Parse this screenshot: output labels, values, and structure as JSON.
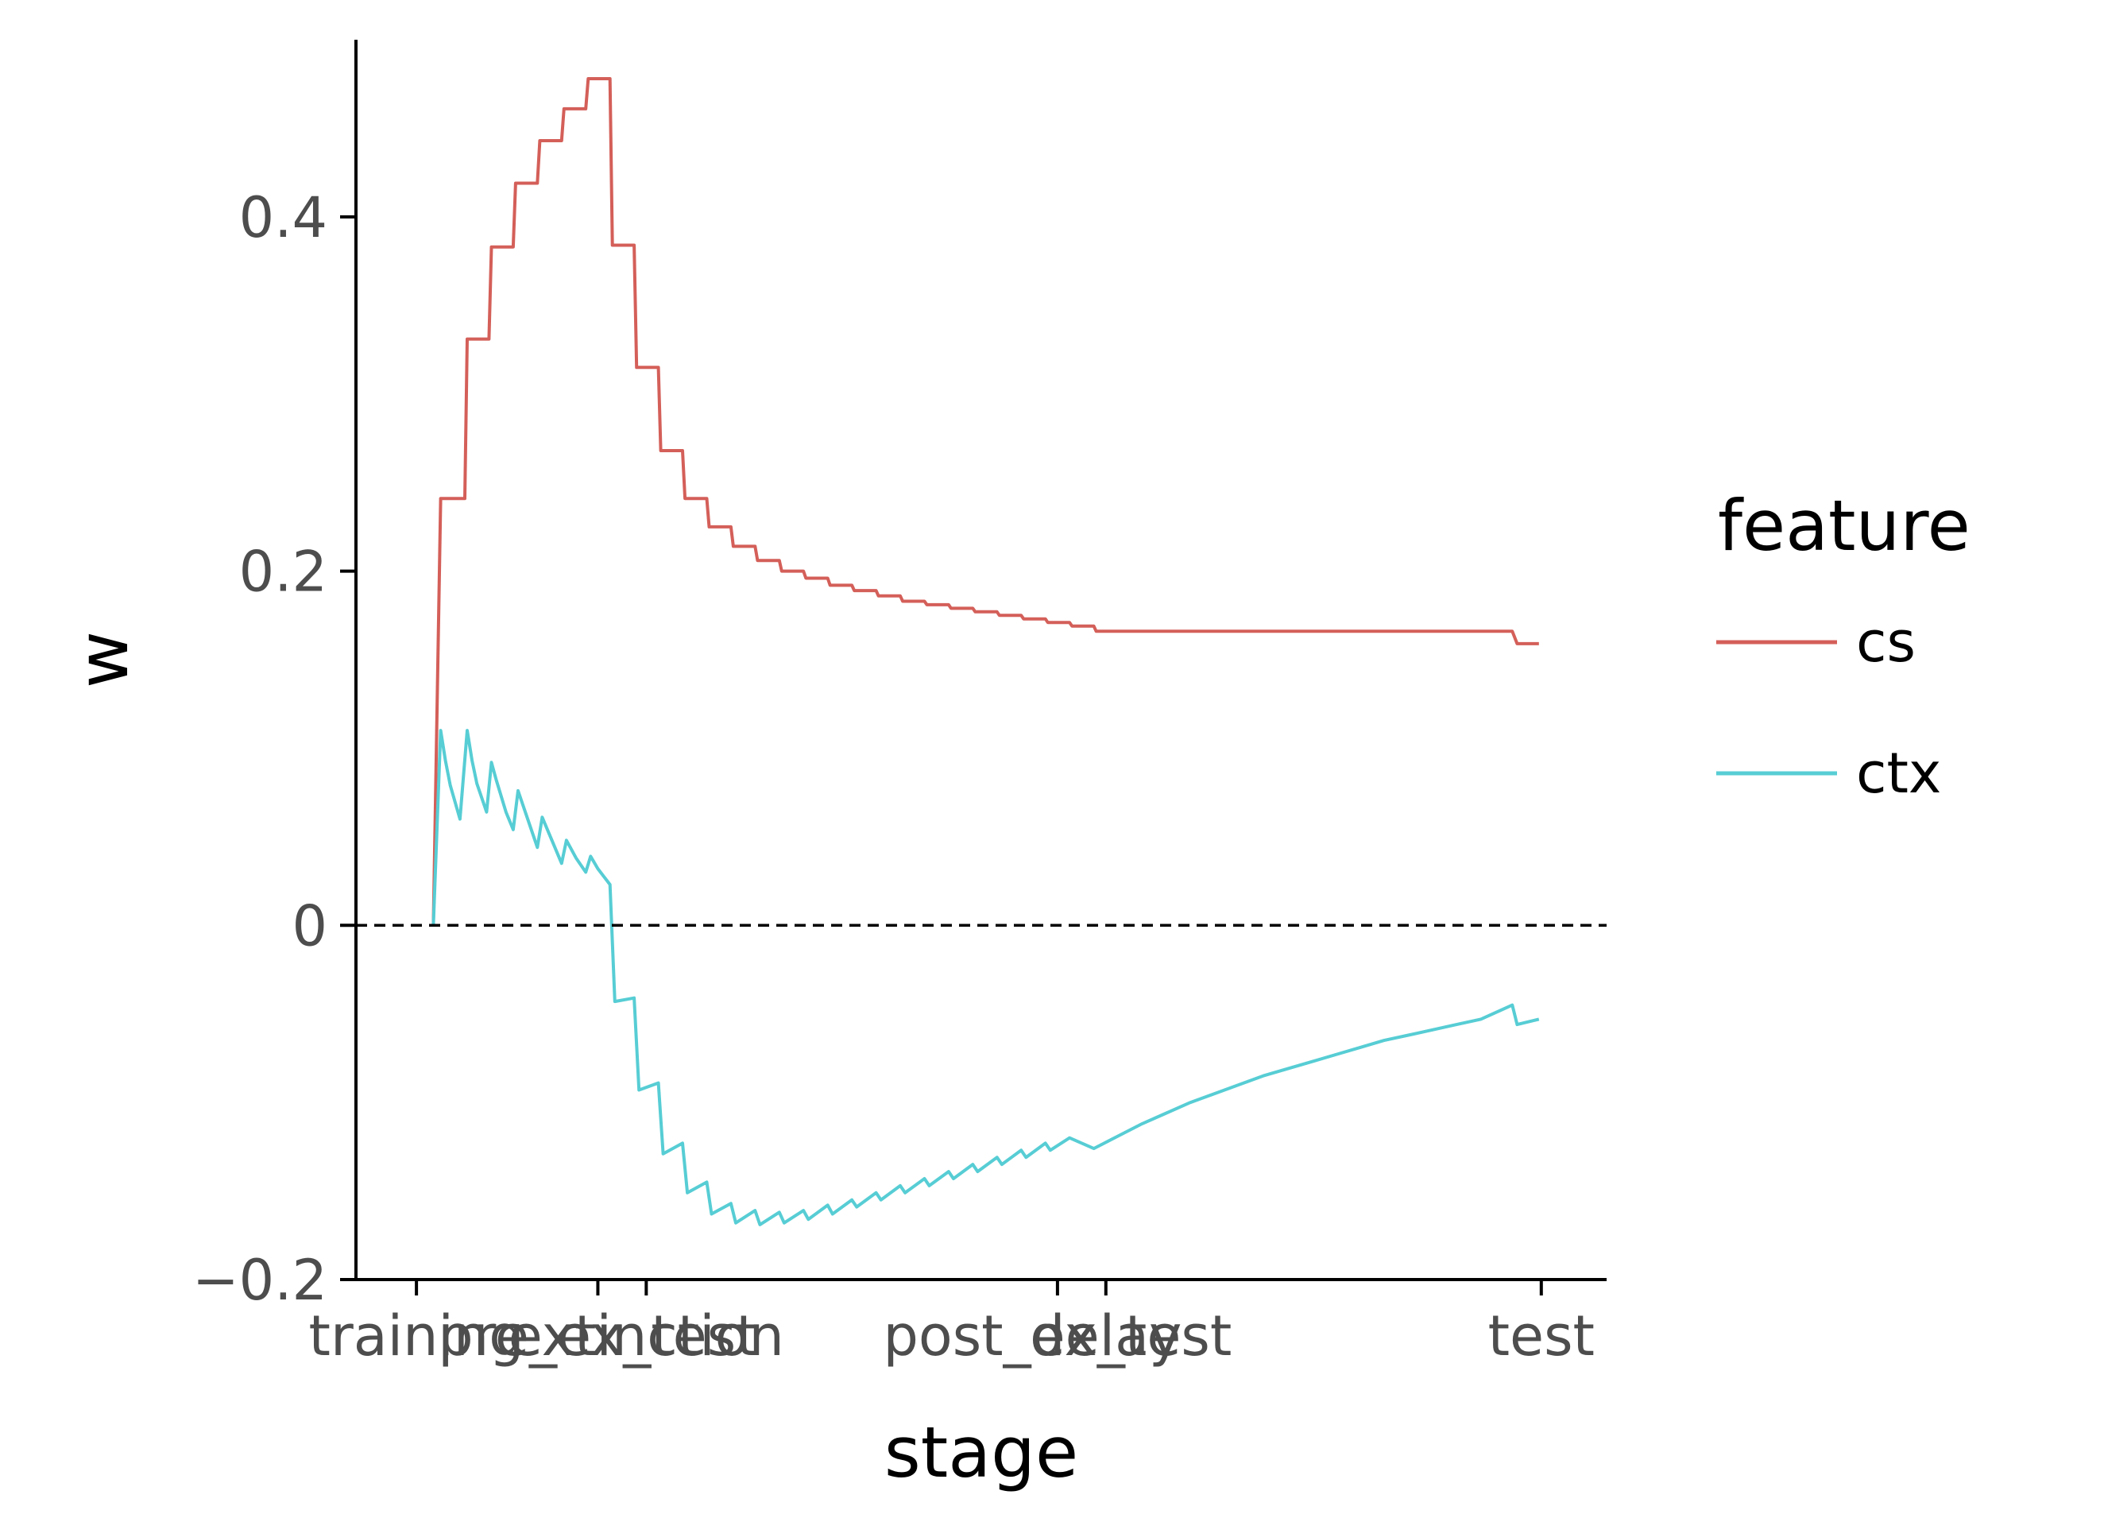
{
  "chart_data": {
    "type": "line",
    "xlabel": "stage",
    "ylabel": "w",
    "ylim": [
      -0.2,
      0.5
    ],
    "y_ticks": [
      {
        "value": -0.2,
        "label": "−0.2"
      },
      {
        "value": 0,
        "label": "0"
      },
      {
        "value": 0.2,
        "label": "0.2"
      },
      {
        "value": 0.4,
        "label": "0.4"
      }
    ],
    "x_ticks": [
      {
        "value": 0,
        "label": "training"
      },
      {
        "value": 7.5,
        "label": "pre_ex_test"
      },
      {
        "value": 9.5,
        "label": "extinction"
      },
      {
        "value": 26.5,
        "label": "post_ex_test"
      },
      {
        "value": 28.5,
        "label": "delay"
      },
      {
        "value": 46.5,
        "label": "test"
      }
    ],
    "xlim": [
      -2.5,
      49.2
    ],
    "reference_line": {
      "y": 0,
      "style": "dashed",
      "color": "#000000"
    },
    "grid": false,
    "legend": {
      "title": "feature",
      "position": "right"
    },
    "series": [
      {
        "name": "cs",
        "color": "#d45f59",
        "points": [
          [
            0.7,
            0
          ],
          [
            1,
            0.241
          ],
          [
            2,
            0.241
          ],
          [
            2.1,
            0.331
          ],
          [
            3,
            0.331
          ],
          [
            3.1,
            0.383
          ],
          [
            4,
            0.383
          ],
          [
            4.1,
            0.419
          ],
          [
            5,
            0.419
          ],
          [
            5.1,
            0.443
          ],
          [
            6,
            0.443
          ],
          [
            6.1,
            0.461
          ],
          [
            7,
            0.461
          ],
          [
            7.1,
            0.478
          ],
          [
            8,
            0.478
          ],
          [
            8.1,
            0.384
          ],
          [
            9,
            0.384
          ],
          [
            9.1,
            0.315
          ],
          [
            10,
            0.315
          ],
          [
            10.1,
            0.268
          ],
          [
            11,
            0.268
          ],
          [
            11.1,
            0.241
          ],
          [
            12,
            0.241
          ],
          [
            12.1,
            0.225
          ],
          [
            13,
            0.225
          ],
          [
            13.1,
            0.214
          ],
          [
            14,
            0.214
          ],
          [
            14.1,
            0.206
          ],
          [
            15,
            0.206
          ],
          [
            15.1,
            0.2
          ],
          [
            16,
            0.2
          ],
          [
            16.1,
            0.196
          ],
          [
            17,
            0.196
          ],
          [
            17.1,
            0.192
          ],
          [
            18,
            0.192
          ],
          [
            18.1,
            0.189
          ],
          [
            19,
            0.189
          ],
          [
            19.1,
            0.186
          ],
          [
            20,
            0.186
          ],
          [
            20.1,
            0.183
          ],
          [
            21,
            0.183
          ],
          [
            21.1,
            0.181
          ],
          [
            22,
            0.181
          ],
          [
            22.1,
            0.179
          ],
          [
            23,
            0.179
          ],
          [
            23.1,
            0.177
          ],
          [
            24,
            0.177
          ],
          [
            24.1,
            0.175
          ],
          [
            25,
            0.175
          ],
          [
            25.1,
            0.173
          ],
          [
            26,
            0.173
          ],
          [
            26.1,
            0.171
          ],
          [
            27,
            0.171
          ],
          [
            27.1,
            0.169
          ],
          [
            28,
            0.169
          ],
          [
            28.1,
            0.166
          ],
          [
            45.3,
            0.166
          ],
          [
            45.5,
            0.159
          ],
          [
            46.4,
            0.159
          ]
        ]
      },
      {
        "name": "ctx",
        "color": "#57cdd4",
        "points": [
          [
            0.7,
            0
          ],
          [
            1,
            0.11
          ],
          [
            1.2,
            0.093
          ],
          [
            1.4,
            0.079
          ],
          [
            1.8,
            0.06
          ],
          [
            2.1,
            0.11
          ],
          [
            2.3,
            0.093
          ],
          [
            2.5,
            0.08
          ],
          [
            2.9,
            0.064
          ],
          [
            3.1,
            0.092
          ],
          [
            3.3,
            0.082
          ],
          [
            3.7,
            0.064
          ],
          [
            4,
            0.054
          ],
          [
            4.2,
            0.076
          ],
          [
            4.5,
            0.064
          ],
          [
            5,
            0.044
          ],
          [
            5.2,
            0.061
          ],
          [
            5.6,
            0.048
          ],
          [
            6,
            0.035
          ],
          [
            6.2,
            0.048
          ],
          [
            6.6,
            0.038
          ],
          [
            7,
            0.03
          ],
          [
            7.2,
            0.039
          ],
          [
            7.5,
            0.032
          ],
          [
            8,
            0.023
          ],
          [
            8.2,
            -0.043
          ],
          [
            9,
            -0.041
          ],
          [
            9.2,
            -0.093
          ],
          [
            10,
            -0.089
          ],
          [
            10.2,
            -0.129
          ],
          [
            11,
            -0.123
          ],
          [
            11.2,
            -0.151
          ],
          [
            12,
            -0.145
          ],
          [
            12.2,
            -0.163
          ],
          [
            13,
            -0.157
          ],
          [
            13.2,
            -0.168
          ],
          [
            14,
            -0.161
          ],
          [
            14.2,
            -0.169
          ],
          [
            15,
            -0.162
          ],
          [
            15.2,
            -0.168
          ],
          [
            16,
            -0.161
          ],
          [
            16.2,
            -0.166
          ],
          [
            17,
            -0.158
          ],
          [
            17.2,
            -0.163
          ],
          [
            18,
            -0.155
          ],
          [
            18.2,
            -0.159
          ],
          [
            19,
            -0.151
          ],
          [
            19.2,
            -0.155
          ],
          [
            20,
            -0.147
          ],
          [
            20.2,
            -0.151
          ],
          [
            21,
            -0.143
          ],
          [
            21.2,
            -0.147
          ],
          [
            22,
            -0.139
          ],
          [
            22.2,
            -0.143
          ],
          [
            23,
            -0.135
          ],
          [
            23.2,
            -0.139
          ],
          [
            24,
            -0.131
          ],
          [
            24.2,
            -0.135
          ],
          [
            25,
            -0.127
          ],
          [
            25.2,
            -0.131
          ],
          [
            26,
            -0.123
          ],
          [
            26.2,
            -0.127
          ],
          [
            27,
            -0.12
          ],
          [
            28,
            -0.126
          ],
          [
            29,
            -0.119
          ],
          [
            30,
            -0.112
          ],
          [
            31,
            -0.106
          ],
          [
            32,
            -0.1
          ],
          [
            33,
            -0.095
          ],
          [
            34,
            -0.09
          ],
          [
            35,
            -0.085
          ],
          [
            36,
            -0.081
          ],
          [
            37,
            -0.077
          ],
          [
            38,
            -0.073
          ],
          [
            39,
            -0.069
          ],
          [
            40,
            -0.065
          ],
          [
            41,
            -0.062
          ],
          [
            42,
            -0.059
          ],
          [
            43,
            -0.056
          ],
          [
            44,
            -0.053
          ],
          [
            45.3,
            -0.045
          ],
          [
            45.5,
            -0.056
          ],
          [
            46.4,
            -0.053
          ]
        ]
      }
    ]
  }
}
